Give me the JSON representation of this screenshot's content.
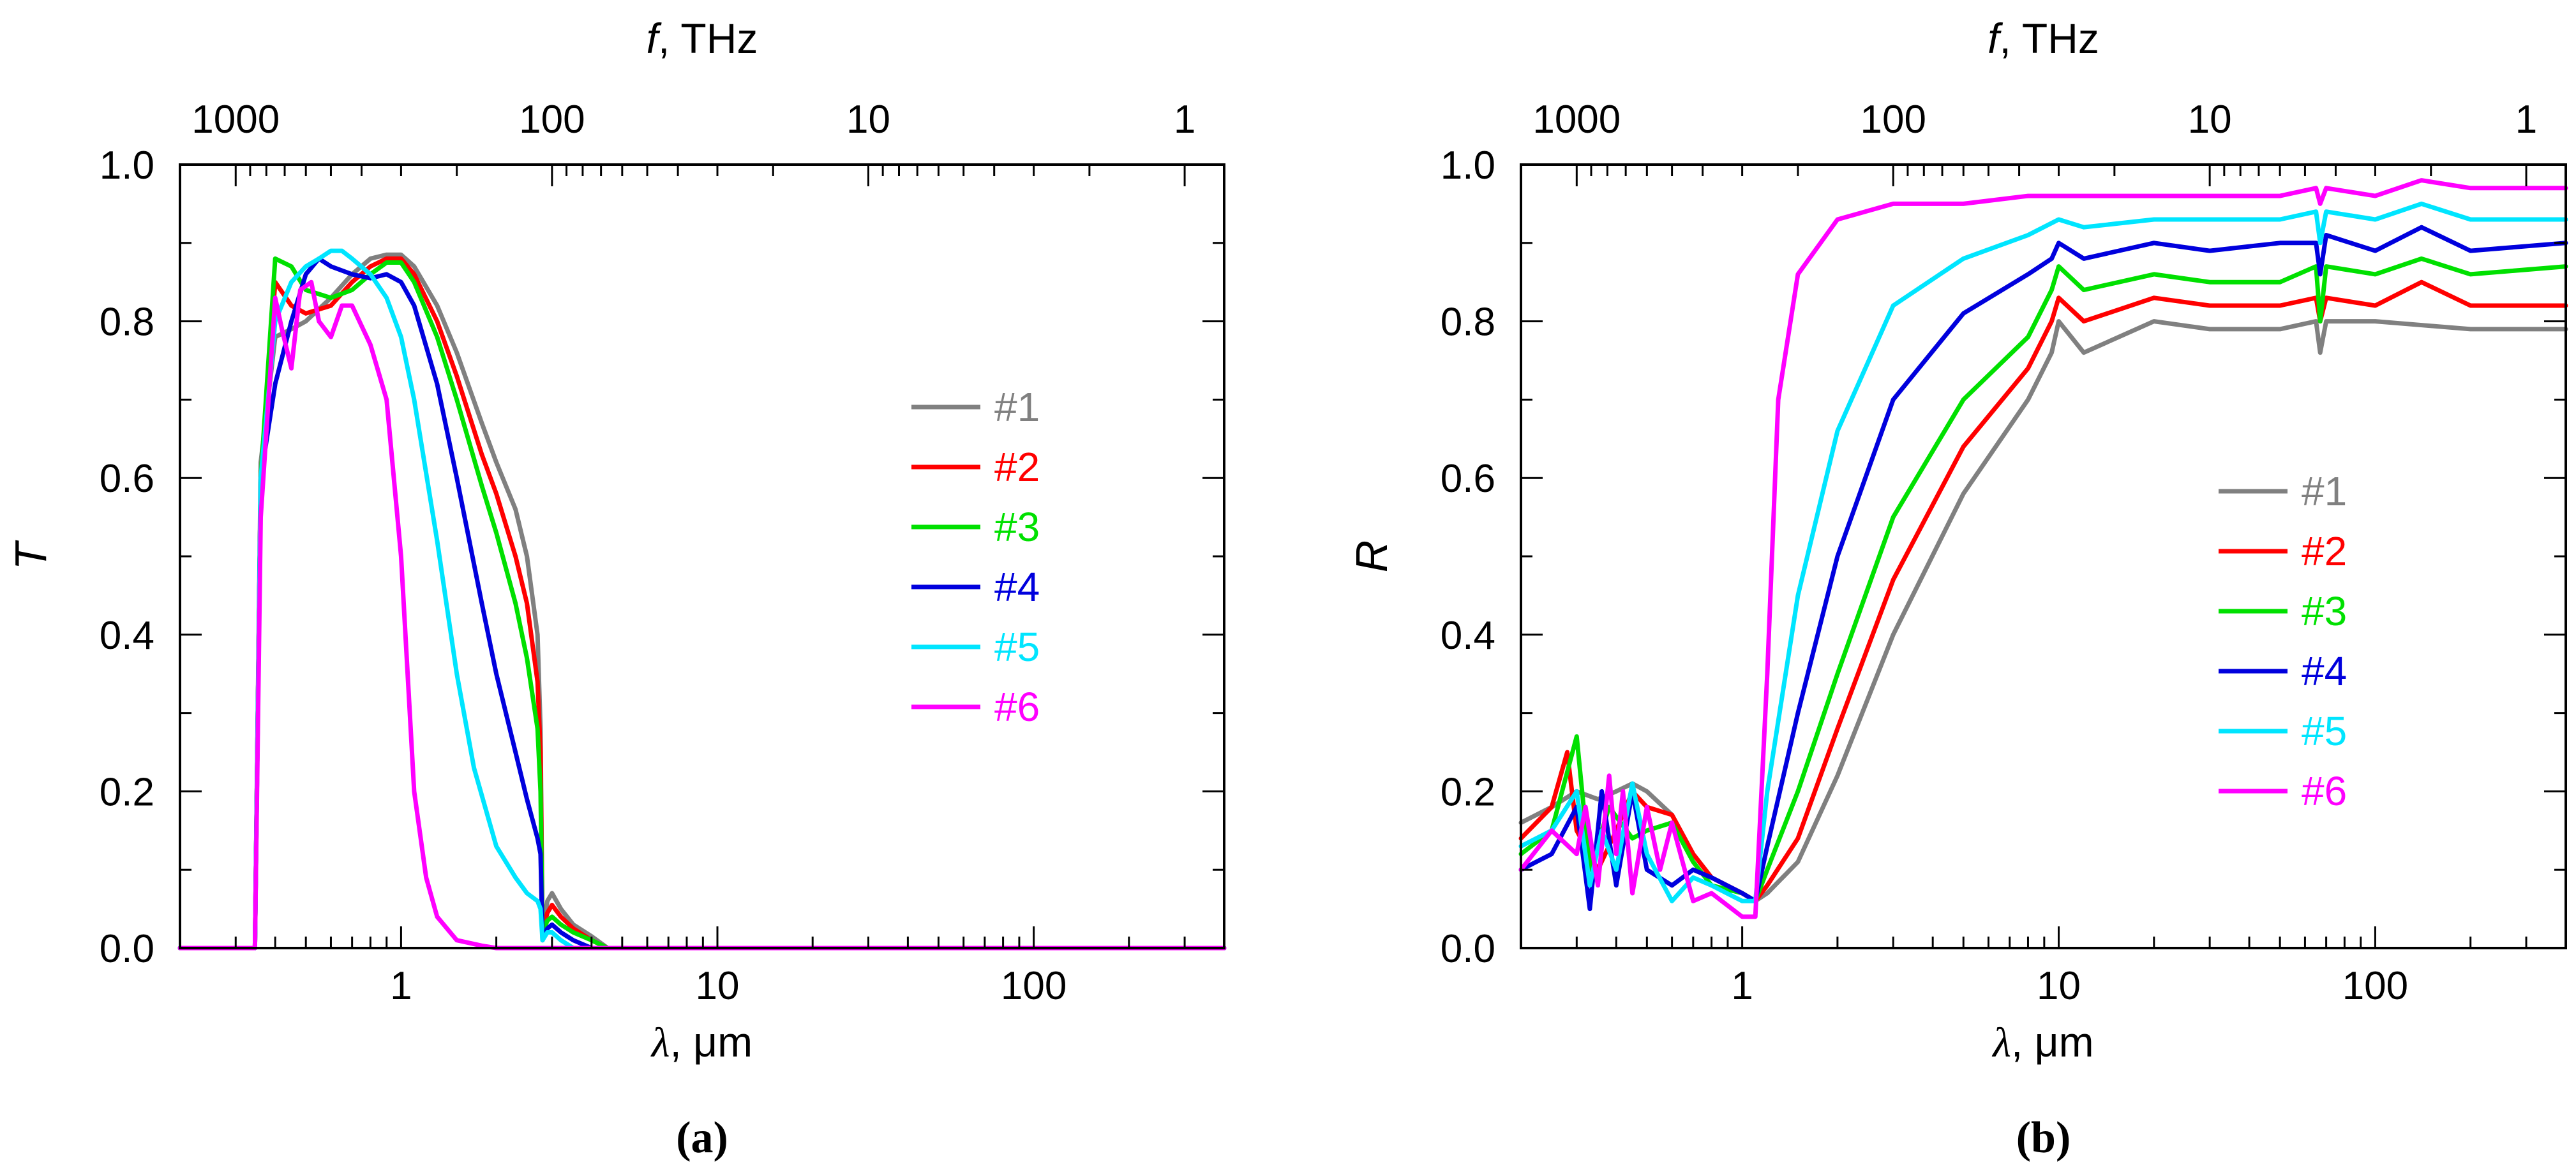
{
  "chart_data": [
    {
      "type": "line",
      "panel_label": "(a)",
      "ylabel": "T",
      "xlabel_symbol": "λ",
      "xlabel_unit": ", μm",
      "top_axis_symbol": "f",
      "top_axis_unit": ", THz",
      "x_scale": "log",
      "xlim": [
        0.2,
        400
      ],
      "ylim": [
        0,
        1
      ],
      "x_ticks": [
        1,
        10,
        100
      ],
      "x_tick_labels": [
        "1",
        "10",
        "100"
      ],
      "y_ticks": [
        0,
        0.2,
        0.4,
        0.6,
        0.8,
        1.0
      ],
      "y_tick_labels": [
        "0.0",
        "0.2",
        "0.4",
        "0.6",
        "0.8",
        "1.0"
      ],
      "top_ticks_thz": [
        1000,
        100,
        10,
        1
      ],
      "top_tick_labels": [
        "1000",
        "100",
        "10",
        "1"
      ],
      "legend": "center-right",
      "series": [
        {
          "name": "#1",
          "color": "#808080",
          "x": [
            0.2,
            0.32,
            0.345,
            0.36,
            0.4,
            0.45,
            0.5,
            0.6,
            0.7,
            0.8,
            0.9,
            1.0,
            1.1,
            1.3,
            1.5,
            1.8,
            2.0,
            2.3,
            2.5,
            2.7,
            2.76,
            2.8,
            2.9,
            3.0,
            3.2,
            3.5,
            4.0,
            4.5,
            400
          ],
          "y": [
            0,
            0,
            0,
            0.62,
            0.78,
            0.79,
            0.8,
            0.83,
            0.86,
            0.88,
            0.885,
            0.885,
            0.87,
            0.82,
            0.76,
            0.67,
            0.62,
            0.56,
            0.5,
            0.4,
            0.28,
            0.02,
            0.06,
            0.07,
            0.05,
            0.03,
            0.015,
            0,
            0
          ]
        },
        {
          "name": "#2",
          "color": "#ff0000",
          "x": [
            0.2,
            0.32,
            0.345,
            0.36,
            0.4,
            0.45,
            0.5,
            0.6,
            0.7,
            0.8,
            0.9,
            1.0,
            1.1,
            1.3,
            1.5,
            1.8,
            2.0,
            2.3,
            2.5,
            2.7,
            2.76,
            2.8,
            2.9,
            3.0,
            3.2,
            3.5,
            4.0,
            4.5,
            400
          ],
          "y": [
            0,
            0,
            0,
            0.6,
            0.85,
            0.82,
            0.81,
            0.82,
            0.85,
            0.87,
            0.88,
            0.88,
            0.86,
            0.8,
            0.73,
            0.63,
            0.58,
            0.5,
            0.44,
            0.34,
            0.25,
            0.02,
            0.045,
            0.055,
            0.04,
            0.025,
            0.01,
            0,
            0
          ]
        },
        {
          "name": "#3",
          "color": "#00e000",
          "x": [
            0.2,
            0.32,
            0.345,
            0.36,
            0.4,
            0.45,
            0.5,
            0.6,
            0.7,
            0.8,
            0.9,
            1.0,
            1.1,
            1.3,
            1.5,
            1.8,
            2.0,
            2.3,
            2.5,
            2.7,
            2.76,
            2.8,
            2.9,
            3.0,
            3.2,
            3.5,
            4.0,
            4.5,
            400
          ],
          "y": [
            0,
            0,
            0,
            0.6,
            0.88,
            0.87,
            0.84,
            0.83,
            0.84,
            0.86,
            0.875,
            0.875,
            0.85,
            0.78,
            0.7,
            0.59,
            0.53,
            0.44,
            0.37,
            0.28,
            0.2,
            0.02,
            0.035,
            0.04,
            0.03,
            0.02,
            0.01,
            0,
            0
          ]
        },
        {
          "name": "#4",
          "color": "#0000dd",
          "x": [
            0.2,
            0.32,
            0.345,
            0.36,
            0.4,
            0.45,
            0.5,
            0.55,
            0.6,
            0.7,
            0.8,
            0.9,
            1.0,
            1.1,
            1.3,
            1.5,
            1.8,
            2.0,
            2.3,
            2.5,
            2.7,
            2.76,
            2.8,
            2.9,
            3.0,
            3.2,
            3.5,
            4.0,
            400
          ],
          "y": [
            0,
            0,
            0,
            0.6,
            0.72,
            0.8,
            0.86,
            0.88,
            0.87,
            0.86,
            0.855,
            0.86,
            0.85,
            0.82,
            0.72,
            0.6,
            0.44,
            0.35,
            0.25,
            0.19,
            0.14,
            0.12,
            0.01,
            0.025,
            0.03,
            0.02,
            0.01,
            0,
            0
          ]
        },
        {
          "name": "#5",
          "color": "#00e5ff",
          "x": [
            0.2,
            0.32,
            0.345,
            0.36,
            0.4,
            0.45,
            0.5,
            0.55,
            0.6,
            0.65,
            0.7,
            0.8,
            0.9,
            1.0,
            1.1,
            1.3,
            1.5,
            1.7,
            2.0,
            2.3,
            2.5,
            2.7,
            2.76,
            2.8,
            2.9,
            3.0,
            3.2,
            3.5,
            400
          ],
          "y": [
            0,
            0,
            0,
            0.6,
            0.8,
            0.85,
            0.87,
            0.88,
            0.89,
            0.89,
            0.88,
            0.86,
            0.83,
            0.78,
            0.7,
            0.52,
            0.35,
            0.23,
            0.13,
            0.09,
            0.07,
            0.06,
            0.05,
            0.01,
            0.02,
            0.02,
            0.01,
            0,
            0
          ]
        },
        {
          "name": "#6",
          "color": "#ff00ff",
          "x": [
            0.2,
            0.32,
            0.345,
            0.36,
            0.4,
            0.42,
            0.45,
            0.48,
            0.52,
            0.55,
            0.6,
            0.65,
            0.7,
            0.8,
            0.9,
            1.0,
            1.1,
            1.2,
            1.3,
            1.5,
            1.8,
            2.0,
            400
          ],
          "y": [
            0,
            0,
            0,
            0.55,
            0.83,
            0.79,
            0.74,
            0.84,
            0.85,
            0.8,
            0.78,
            0.82,
            0.82,
            0.77,
            0.7,
            0.5,
            0.2,
            0.09,
            0.04,
            0.01,
            0.003,
            0,
            0
          ]
        }
      ]
    },
    {
      "type": "line",
      "panel_label": "(b)",
      "ylabel": "R",
      "xlabel_symbol": "λ",
      "xlabel_unit": ", μm",
      "top_axis_symbol": "f",
      "top_axis_unit": ", THz",
      "x_scale": "log",
      "xlim": [
        0.2,
        400
      ],
      "ylim": [
        0,
        1
      ],
      "x_ticks": [
        1,
        10,
        100
      ],
      "x_tick_labels": [
        "1",
        "10",
        "100"
      ],
      "y_ticks": [
        0,
        0.2,
        0.4,
        0.6,
        0.8,
        1.0
      ],
      "y_tick_labels": [
        "0.0",
        "0.2",
        "0.4",
        "0.6",
        "0.8",
        "1.0"
      ],
      "top_ticks_thz": [
        1000,
        100,
        10,
        1
      ],
      "top_tick_labels": [
        "1000",
        "100",
        "10",
        "1"
      ],
      "legend": "center-right",
      "series": [
        {
          "name": "#1",
          "color": "#808080",
          "x": [
            0.2,
            0.25,
            0.3,
            0.35,
            0.4,
            0.45,
            0.5,
            0.6,
            0.7,
            0.8,
            1.0,
            1.1,
            1.2,
            1.5,
            2.0,
            3.0,
            5.0,
            8.0,
            9.5,
            10,
            12,
            20,
            30,
            50,
            65,
            67,
            70,
            100,
            200,
            400
          ],
          "y": [
            0.16,
            0.18,
            0.2,
            0.19,
            0.2,
            0.21,
            0.2,
            0.17,
            0.12,
            0.09,
            0.07,
            0.06,
            0.07,
            0.11,
            0.22,
            0.4,
            0.58,
            0.7,
            0.76,
            0.8,
            0.76,
            0.8,
            0.79,
            0.79,
            0.8,
            0.76,
            0.8,
            0.8,
            0.79,
            0.79
          ]
        },
        {
          "name": "#2",
          "color": "#ff0000",
          "x": [
            0.2,
            0.25,
            0.28,
            0.3,
            0.35,
            0.4,
            0.45,
            0.5,
            0.6,
            0.7,
            0.8,
            1.0,
            1.1,
            1.2,
            1.5,
            2.0,
            3.0,
            5.0,
            8.0,
            9.5,
            10,
            12,
            20,
            30,
            50,
            65,
            67,
            70,
            100,
            140,
            200,
            400
          ],
          "y": [
            0.14,
            0.18,
            0.25,
            0.15,
            0.1,
            0.15,
            0.2,
            0.18,
            0.17,
            0.12,
            0.09,
            0.07,
            0.06,
            0.08,
            0.14,
            0.28,
            0.47,
            0.64,
            0.74,
            0.8,
            0.83,
            0.8,
            0.83,
            0.82,
            0.82,
            0.83,
            0.8,
            0.83,
            0.82,
            0.85,
            0.82,
            0.82
          ]
        },
        {
          "name": "#3",
          "color": "#00e000",
          "x": [
            0.2,
            0.25,
            0.3,
            0.33,
            0.38,
            0.45,
            0.5,
            0.6,
            0.7,
            0.8,
            1.0,
            1.1,
            1.2,
            1.5,
            2.0,
            3.0,
            5.0,
            8.0,
            9.5,
            10,
            12,
            20,
            30,
            50,
            65,
            67,
            70,
            100,
            140,
            200,
            400
          ],
          "y": [
            0.12,
            0.15,
            0.27,
            0.1,
            0.18,
            0.14,
            0.15,
            0.16,
            0.11,
            0.08,
            0.07,
            0.06,
            0.1,
            0.2,
            0.35,
            0.55,
            0.7,
            0.78,
            0.84,
            0.87,
            0.84,
            0.86,
            0.85,
            0.85,
            0.87,
            0.8,
            0.87,
            0.86,
            0.88,
            0.86,
            0.87
          ]
        },
        {
          "name": "#4",
          "color": "#0000dd",
          "x": [
            0.2,
            0.25,
            0.3,
            0.33,
            0.36,
            0.4,
            0.45,
            0.5,
            0.6,
            0.7,
            0.8,
            1.0,
            1.1,
            1.2,
            1.5,
            2.0,
            3.0,
            5.0,
            8.0,
            9.5,
            10,
            12,
            20,
            30,
            50,
            65,
            67,
            70,
            100,
            140,
            200,
            400
          ],
          "y": [
            0.1,
            0.12,
            0.18,
            0.05,
            0.2,
            0.08,
            0.2,
            0.1,
            0.08,
            0.1,
            0.09,
            0.07,
            0.06,
            0.13,
            0.3,
            0.5,
            0.7,
            0.81,
            0.86,
            0.88,
            0.9,
            0.88,
            0.9,
            0.89,
            0.9,
            0.9,
            0.86,
            0.91,
            0.89,
            0.92,
            0.89,
            0.9
          ]
        },
        {
          "name": "#5",
          "color": "#00e5ff",
          "x": [
            0.2,
            0.25,
            0.3,
            0.33,
            0.36,
            0.4,
            0.45,
            0.5,
            0.6,
            0.7,
            0.8,
            1.0,
            1.1,
            1.2,
            1.5,
            2.0,
            3.0,
            5.0,
            8.0,
            10,
            12,
            20,
            30,
            50,
            65,
            67,
            70,
            100,
            140,
            200,
            400
          ],
          "y": [
            0.13,
            0.15,
            0.2,
            0.08,
            0.15,
            0.1,
            0.21,
            0.12,
            0.06,
            0.09,
            0.08,
            0.06,
            0.06,
            0.2,
            0.45,
            0.66,
            0.82,
            0.88,
            0.91,
            0.93,
            0.92,
            0.93,
            0.93,
            0.93,
            0.94,
            0.9,
            0.94,
            0.93,
            0.95,
            0.93,
            0.93
          ]
        },
        {
          "name": "#6",
          "color": "#ff00ff",
          "x": [
            0.2,
            0.25,
            0.3,
            0.32,
            0.35,
            0.38,
            0.4,
            0.42,
            0.45,
            0.5,
            0.55,
            0.6,
            0.7,
            0.8,
            1.0,
            1.1,
            1.2,
            1.3,
            1.5,
            2.0,
            3.0,
            5.0,
            8.0,
            10,
            20,
            30,
            50,
            65,
            67,
            70,
            100,
            140,
            200,
            400
          ],
          "y": [
            0.1,
            0.15,
            0.12,
            0.18,
            0.08,
            0.22,
            0.12,
            0.2,
            0.07,
            0.18,
            0.1,
            0.16,
            0.06,
            0.07,
            0.04,
            0.04,
            0.35,
            0.7,
            0.86,
            0.93,
            0.95,
            0.95,
            0.96,
            0.96,
            0.96,
            0.96,
            0.96,
            0.97,
            0.95,
            0.97,
            0.96,
            0.98,
            0.97,
            0.97
          ]
        }
      ]
    }
  ]
}
